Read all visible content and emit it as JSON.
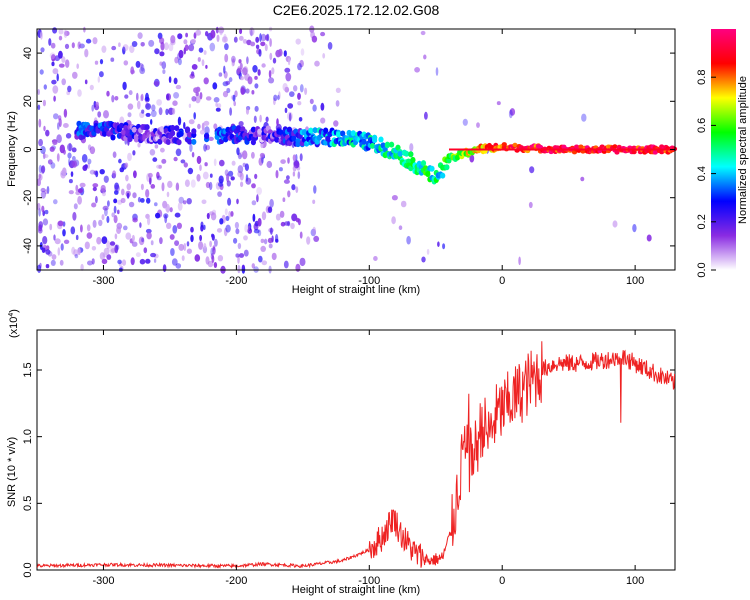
{
  "title": "C2E6.2025.172.12.02.G08",
  "chart_data": [
    {
      "type": "heatmap",
      "xlabel": "Height of straight line (km)",
      "ylabel": "Frequency (Hz)",
      "xlim": [
        -350,
        130
      ],
      "ylim": [
        -50,
        50
      ],
      "x_ticks": [
        "-300",
        "-200",
        "-100",
        "0",
        "100"
      ],
      "y_ticks": [
        "-40",
        "-20",
        "0",
        "20",
        "40"
      ],
      "colorbar": {
        "label": "Normalized spectral amplitude",
        "range": [
          0,
          1
        ],
        "ticks": [
          "0.0",
          "0.2",
          "0.4",
          "0.6",
          "0.8"
        ],
        "colors": [
          "#ffffff",
          "#8a2be2",
          "#0000ff",
          "#00ffff",
          "#00ff00",
          "#ffff00",
          "#ff0000",
          "#ff0080"
        ]
      },
      "signal_trace": {
        "x": [
          -300,
          -260,
          -220,
          -180,
          -150,
          -120,
          -100,
          -80,
          -60,
          -50,
          -40,
          -20,
          0,
          50,
          100,
          130
        ],
        "frequency": [
          8,
          6,
          6,
          6,
          5,
          5,
          3,
          -1,
          -8,
          -12,
          -4,
          0,
          1,
          0,
          0,
          0
        ],
        "amplitude": [
          0.25,
          0.15,
          0.3,
          0.15,
          0.3,
          0.4,
          0.4,
          0.45,
          0.5,
          0.45,
          0.55,
          0.7,
          0.85,
          0.9,
          0.9,
          0.9
        ]
      }
    },
    {
      "type": "line",
      "xlabel": "Height of straight line (km)",
      "ylabel": "SNR (10 * v/v)",
      "y_scale_label": "(x10",
      "y_scale_exp": "4",
      "xlim": [
        -350,
        130
      ],
      "ylim": [
        0,
        18000
      ],
      "x_ticks": [
        "-300",
        "-200",
        "-100",
        "0",
        "100"
      ],
      "y_ticks": [
        "0.0",
        "0.5",
        "1.0",
        "1.5"
      ],
      "color": "#ee2222",
      "series": [
        {
          "x": [
            -350,
            -300,
            -250,
            -200,
            -180,
            -150,
            -120,
            -100,
            -90,
            -82,
            -75,
            -65,
            -55,
            -45,
            -38,
            -32,
            -28,
            -25,
            -20,
            -15,
            -10,
            -5,
            0,
            10,
            20,
            30,
            40,
            60,
            80,
            90,
            100,
            110,
            120,
            130
          ],
          "values": [
            300,
            400,
            350,
            300,
            450,
            300,
            700,
            1500,
            2500,
            4000,
            2500,
            1200,
            700,
            900,
            3000,
            7000,
            9500,
            8000,
            9000,
            11000,
            10000,
            11500,
            12000,
            13000,
            14000,
            15000,
            15500,
            15500,
            15800,
            16000,
            15500,
            15000,
            14500,
            14000
          ]
        }
      ]
    }
  ]
}
